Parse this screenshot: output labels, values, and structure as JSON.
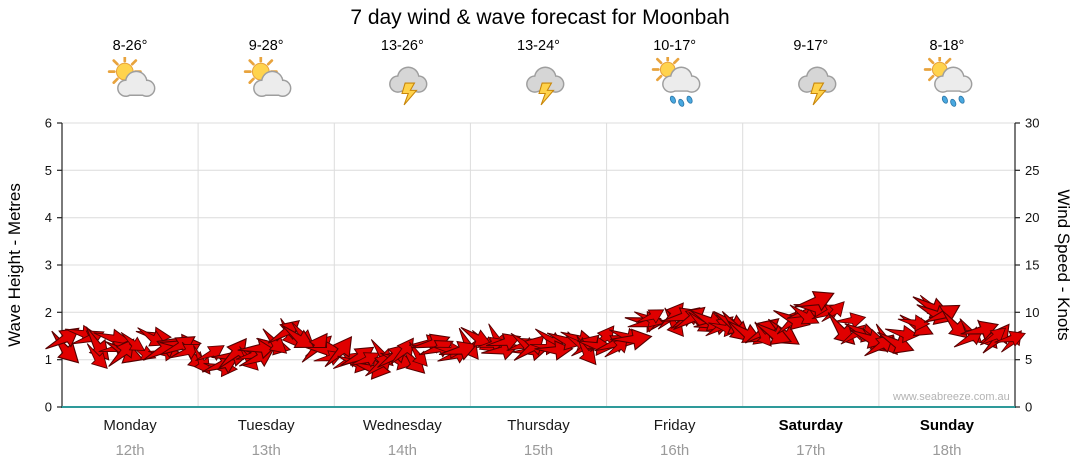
{
  "title": "7 day wind & wave forecast for Moonbah",
  "watermark": "www.seabreeze.com.au",
  "axes": {
    "left_label": "Wave Height - Metres",
    "right_label": "Wind Speed - Knots",
    "left_ticks": [
      0,
      1,
      2,
      3,
      4,
      5,
      6
    ],
    "right_ticks": [
      0,
      5,
      10,
      15,
      20,
      25,
      30
    ]
  },
  "days": [
    {
      "name": "Monday",
      "date": "12th",
      "temp": "8-26°",
      "icon": "partly-cloudy",
      "bold": false
    },
    {
      "name": "Tuesday",
      "date": "13th",
      "temp": "9-28°",
      "icon": "partly-cloudy",
      "bold": false
    },
    {
      "name": "Wednesday",
      "date": "14th",
      "temp": "13-26°",
      "icon": "storm",
      "bold": false
    },
    {
      "name": "Thursday",
      "date": "15th",
      "temp": "13-24°",
      "icon": "storm",
      "bold": false
    },
    {
      "name": "Friday",
      "date": "16th",
      "temp": "10-17°",
      "icon": "sun-showers",
      "bold": false
    },
    {
      "name": "Saturday",
      "date": "17th",
      "temp": "9-17°",
      "icon": "storm",
      "bold": true
    },
    {
      "name": "Sunday",
      "date": "18th",
      "temp": "8-18°",
      "icon": "sun-showers",
      "bold": true
    }
  ],
  "chart_data": {
    "type": "line",
    "style": "wind-arrows",
    "title": "7 day wind & wave forecast for Moonbah",
    "categories": [
      "Monday 12th",
      "Tuesday 13th",
      "Wednesday 14th",
      "Thursday 15th",
      "Friday 16th",
      "Saturday 17th",
      "Sunday 18th"
    ],
    "samples_per_day": 10,
    "series": [
      {
        "name": "Wind Speed",
        "units": "knots",
        "values": [
          6.5,
          7.2,
          6.0,
          6.8,
          5.5,
          6.5,
          7.0,
          6.2,
          6.8,
          6.0,
          5.2,
          4.8,
          6.0,
          5.0,
          5.5,
          6.3,
          7.8,
          7.0,
          6.0,
          5.5,
          5.2,
          4.8,
          4.6,
          5.0,
          5.3,
          5.6,
          6.0,
          6.4,
          6.1,
          6.6,
          7.6,
          7.0,
          6.4,
          7.0,
          6.1,
          6.7,
          6.3,
          6.6,
          6.2,
          6.5,
          6.8,
          7.4,
          8.4,
          8.9,
          9.1,
          8.7,
          9.0,
          8.8,
          8.6,
          8.3,
          7.8,
          7.4,
          7.9,
          9.0,
          10.3,
          10.4,
          9.4,
          8.4,
          7.7,
          7.1,
          6.4,
          7.0,
          8.2,
          9.9,
          9.4,
          8.7,
          7.9,
          7.4,
          7.1,
          6.9
        ]
      }
    ],
    "y_left": {
      "label": "Wave Height - Metres",
      "range": [
        0,
        6
      ]
    },
    "y_right": {
      "label": "Wind Speed - Knots",
      "range": [
        0,
        30
      ]
    },
    "grid": true,
    "legend": "none",
    "colors": {
      "arrow_fill": "#E00000",
      "arrow_stroke": "#550000",
      "baseline": "#2E9A9A",
      "gridline": "#DCDCDC",
      "axis": "#222222",
      "sun": "#FFD34D",
      "sun_ray": "#E8A33D",
      "cloud_light": "#ECECEC",
      "cloud_edge": "#9E9E9E",
      "cloud_dark": "#D6D6D6",
      "bolt": "#FFD24A",
      "bolt_edge": "#C8860A",
      "rain": "#49A8E0",
      "rain_edge": "#2C77A8"
    }
  }
}
